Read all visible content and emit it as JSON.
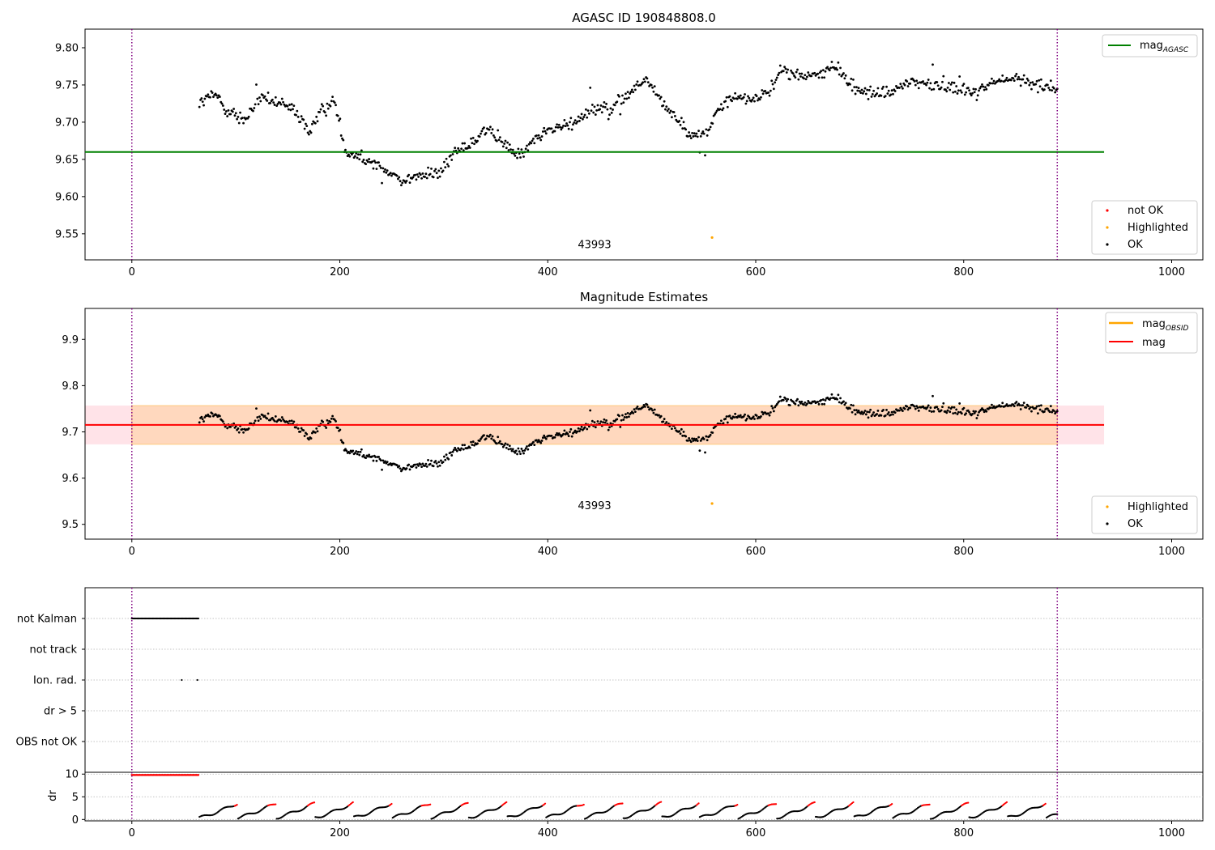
{
  "chart_data": [
    {
      "type": "scatter",
      "title": "AGASC ID 190848808.0",
      "xlim": [
        -45,
        1030
      ],
      "ylim": [
        9.515,
        9.825
      ],
      "xticks": [
        "0",
        "200",
        "400",
        "600",
        "800",
        "1000"
      ],
      "yticks": [
        "9.55",
        "9.60",
        "9.65",
        "9.70",
        "9.75",
        "9.80"
      ],
      "vlines": [
        0,
        890
      ],
      "hline": {
        "label_main": "mag",
        "label_sub": "AGASC",
        "value": 9.66,
        "x_range": [
          -45,
          935
        ],
        "color": "#008000"
      },
      "annotation": {
        "text": "43993",
        "x": 445,
        "y": 9.535
      },
      "highlighted_points": [
        {
          "x": 558,
          "y": 9.545
        }
      ],
      "point_legend": [
        {
          "label": "not OK",
          "color": "#ff0000"
        },
        {
          "label": "Highlighted",
          "color": "#ffa500"
        },
        {
          "label": "OK",
          "color": "#000000"
        }
      ],
      "trend": [
        [
          65,
          9.725
        ],
        [
          80,
          9.738
        ],
        [
          95,
          9.712
        ],
        [
          110,
          9.703
        ],
        [
          125,
          9.735
        ],
        [
          140,
          9.725
        ],
        [
          155,
          9.718
        ],
        [
          170,
          9.688
        ],
        [
          185,
          9.718
        ],
        [
          195,
          9.73
        ],
        [
          205,
          9.663
        ],
        [
          220,
          9.655
        ],
        [
          240,
          9.638
        ],
        [
          260,
          9.622
        ],
        [
          280,
          9.628
        ],
        [
          300,
          9.635
        ],
        [
          310,
          9.66
        ],
        [
          325,
          9.672
        ],
        [
          340,
          9.69
        ],
        [
          355,
          9.675
        ],
        [
          370,
          9.655
        ],
        [
          385,
          9.672
        ],
        [
          400,
          9.69
        ],
        [
          420,
          9.695
        ],
        [
          440,
          9.718
        ],
        [
          460,
          9.72
        ],
        [
          480,
          9.74
        ],
        [
          495,
          9.758
        ],
        [
          505,
          9.738
        ],
        [
          520,
          9.712
        ],
        [
          535,
          9.682
        ],
        [
          555,
          9.688
        ],
        [
          565,
          9.72
        ],
        [
          580,
          9.735
        ],
        [
          600,
          9.73
        ],
        [
          615,
          9.745
        ],
        [
          625,
          9.77
        ],
        [
          645,
          9.762
        ],
        [
          665,
          9.765
        ],
        [
          680,
          9.775
        ],
        [
          690,
          9.75
        ],
        [
          710,
          9.738
        ],
        [
          730,
          9.74
        ],
        [
          750,
          9.755
        ],
        [
          770,
          9.75
        ],
        [
          790,
          9.748
        ],
        [
          810,
          9.74
        ],
        [
          830,
          9.755
        ],
        [
          850,
          9.758
        ],
        [
          870,
          9.752
        ],
        [
          890,
          9.745
        ]
      ],
      "point_noise": 0.012,
      "point_count": 800
    },
    {
      "type": "scatter",
      "title": "Magnitude Estimates",
      "xlim": [
        -45,
        1030
      ],
      "ylim": [
        9.468,
        9.967
      ],
      "xticks": [
        "0",
        "200",
        "400",
        "600",
        "800",
        "1000"
      ],
      "yticks": [
        "9.5",
        "9.6",
        "9.7",
        "9.8",
        "9.9"
      ],
      "vlines": [
        0,
        890
      ],
      "line_legend": [
        {
          "label_main": "mag",
          "label_sub": "OBSID",
          "color": "#ffa500"
        },
        {
          "label_main": "mag",
          "label_sub": "",
          "color": "#ff0000"
        }
      ],
      "mag_line": {
        "value": 9.715,
        "x_range": [
          -45,
          935
        ]
      },
      "mag_band_outer": {
        "low": 9.673,
        "high": 9.757,
        "x_range": [
          -45,
          935
        ],
        "color": "#ffc0cb"
      },
      "mag_band_obsid": {
        "low": 9.673,
        "high": 9.757,
        "x_range": [
          0,
          890
        ],
        "color": "#ffa500"
      },
      "annotation": {
        "text": "43993",
        "x": 445,
        "y": 9.54
      },
      "highlighted_points": [
        {
          "x": 558,
          "y": 9.545
        }
      ],
      "point_legend": [
        {
          "label": "Highlighted",
          "color": "#ffa500"
        },
        {
          "label": "OK",
          "color": "#000000"
        }
      ]
    },
    {
      "type": "scatter",
      "title": "",
      "xlim": [
        -45,
        1030
      ],
      "flag_rows": [
        "not Kalman",
        "not track",
        "Ion. rad.",
        "dr > 5",
        "OBS not OK"
      ],
      "not_kalman_range": [
        0,
        64
      ],
      "ion_rad_x": [
        48,
        63
      ],
      "vlines": [
        0,
        890
      ]
    },
    {
      "type": "scatter",
      "title": "",
      "ylabel": "dr",
      "xlim": [
        -45,
        1030
      ],
      "ylim": [
        -0.3,
        10.4
      ],
      "xticks": [
        "0",
        "200",
        "400",
        "600",
        "800",
        "1000"
      ],
      "yticks": [
        "0",
        "5",
        "10"
      ],
      "vlines": [
        0,
        890
      ],
      "high_dr_range": [
        0,
        64
      ],
      "high_dr_value": 9.8,
      "dr_threshold": 3
    }
  ]
}
